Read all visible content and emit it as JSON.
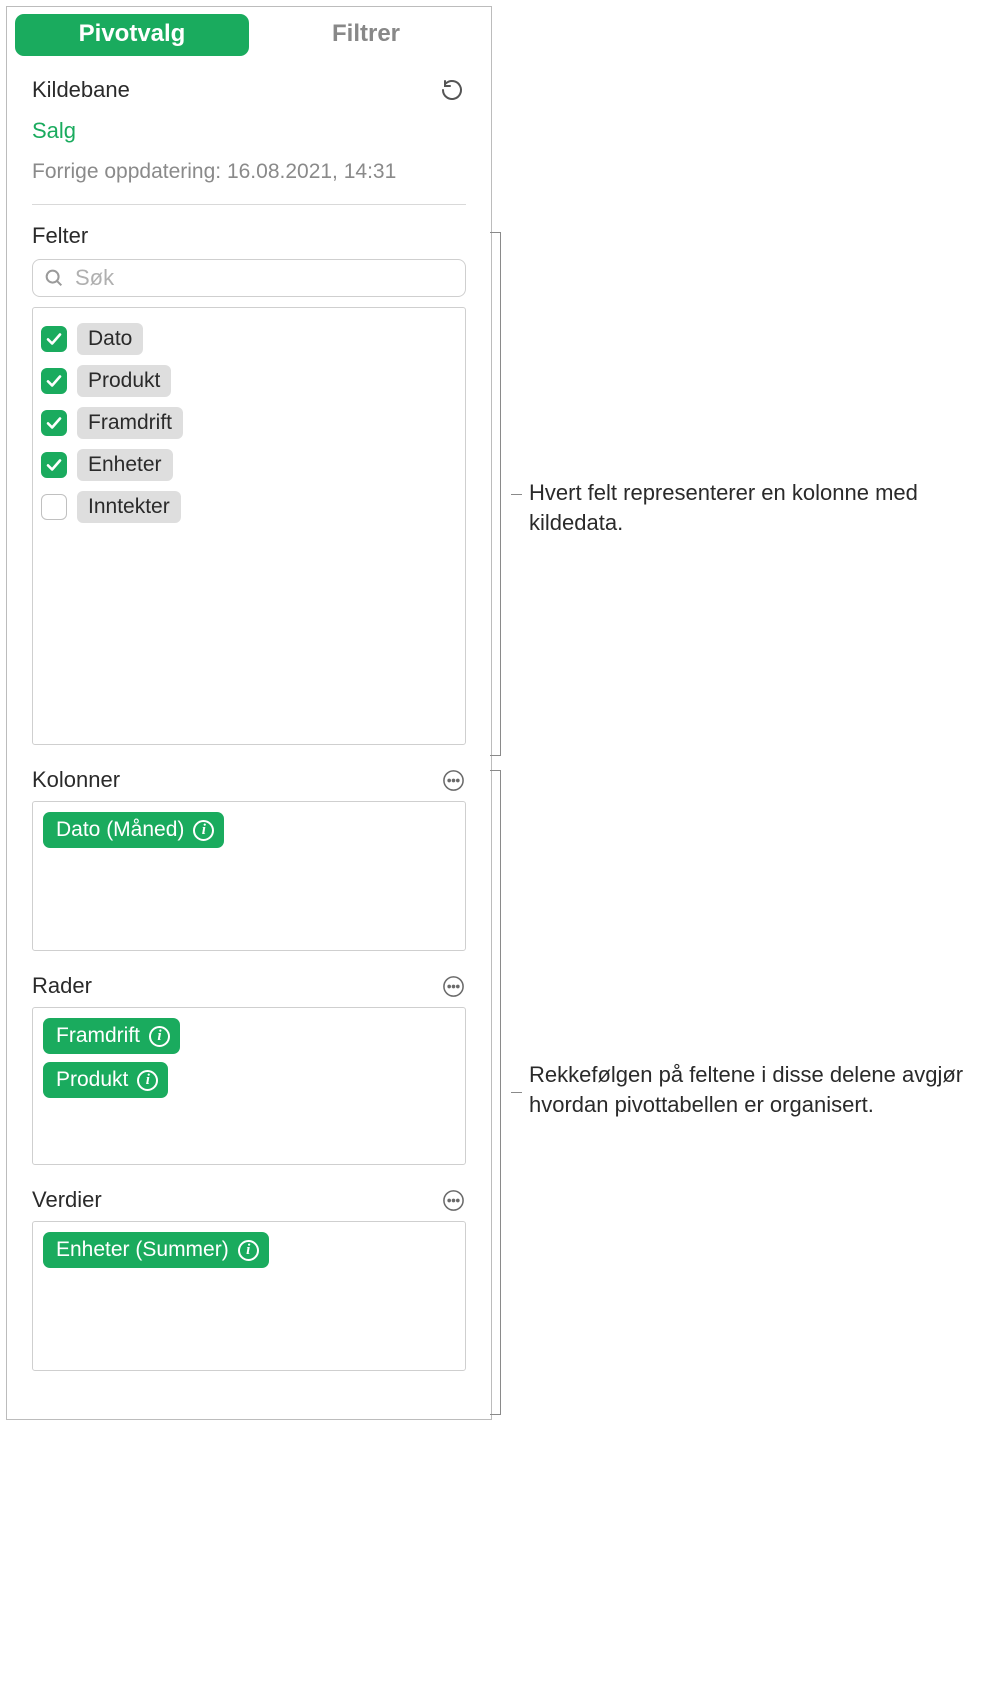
{
  "tabs": {
    "pivot": "Pivotvalg",
    "filter": "Filtrer"
  },
  "source": {
    "heading": "Kildebane",
    "name": "Salg",
    "lastUpdate": "Forrige oppdatering: 16.08.2021, 14:31"
  },
  "fields": {
    "heading": "Felter",
    "searchPlaceholder": "Søk",
    "items": [
      {
        "label": "Dato",
        "checked": true
      },
      {
        "label": "Produkt",
        "checked": true
      },
      {
        "label": "Framdrift",
        "checked": true
      },
      {
        "label": "Enheter",
        "checked": true
      },
      {
        "label": "Inntekter",
        "checked": false
      }
    ]
  },
  "zones": {
    "columns": {
      "heading": "Kolonner",
      "pills": [
        "Dato (Måned)"
      ]
    },
    "rows": {
      "heading": "Rader",
      "pills": [
        "Framdrift",
        "Produkt"
      ]
    },
    "values": {
      "heading": "Verdier",
      "pills": [
        "Enheter (Summer)"
      ]
    }
  },
  "callouts": {
    "fields": "Hvert felt representerer en kolonne med kildedata.",
    "zones": "Rekkefølgen på feltene i disse delene avgjør hvordan pivottabellen er organisert."
  },
  "colors": {
    "accent": "#1aab5e",
    "chip": "#dedede",
    "muted": "#8a8a8a",
    "border": "#cfcfcf"
  }
}
